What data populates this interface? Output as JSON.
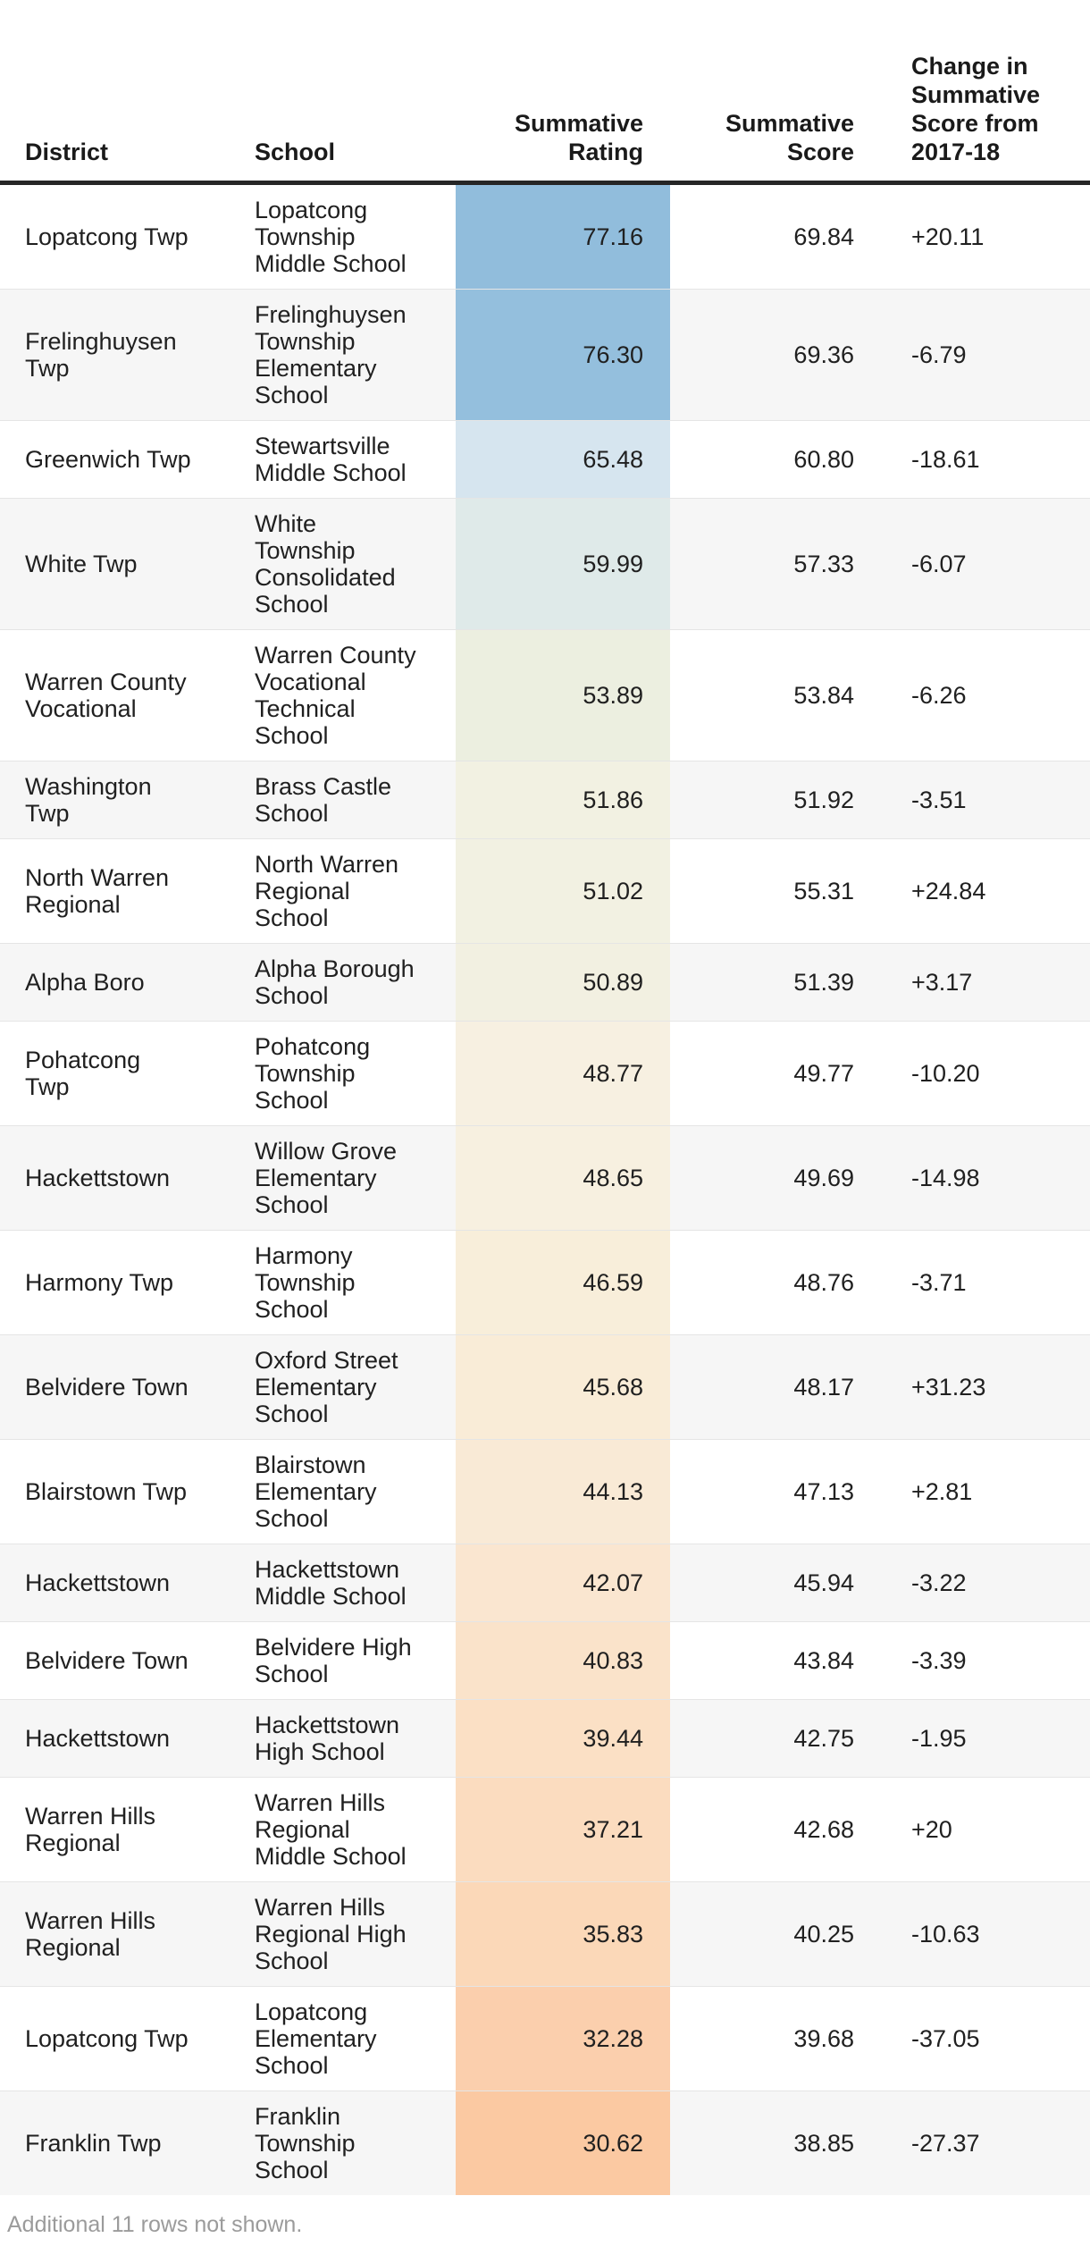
{
  "chart_data": {
    "type": "table",
    "title": "",
    "columns": [
      "District",
      "School",
      "Summative Rating",
      "Summative Score",
      "Change in Summative Score from 2017-18"
    ],
    "header_display": {
      "district": "District",
      "school": "School",
      "rating": "Summative\nRating",
      "score": "Summative\nScore",
      "change": "Change in\nSummative\nScore from\n2017-18"
    },
    "rows": [
      {
        "district": "Lopatcong Twp",
        "school": "Lopatcong\nTownship\nMiddle School",
        "rating": "77.16",
        "score": "69.84",
        "change": "+20.11",
        "rating_color": "#91bddc"
      },
      {
        "district": "Frelinghuysen\nTwp",
        "school": "Frelinghuysen\nTownship\nElementary\nSchool",
        "rating": "76.30",
        "score": "69.36",
        "change": "-6.79",
        "rating_color": "#94bfdd"
      },
      {
        "district": "Greenwich Twp",
        "school": "Stewartsville\nMiddle School",
        "rating": "65.48",
        "score": "60.80",
        "change": "-18.61",
        "rating_color": "#d6e5ef"
      },
      {
        "district": "White Twp",
        "school": "White\nTownship\nConsolidated\nSchool",
        "rating": "59.99",
        "score": "57.33",
        "change": "-6.07",
        "rating_color": "#dfeae9"
      },
      {
        "district": "Warren County\nVocational",
        "school": "Warren County\nVocational\nTechnical\nSchool",
        "rating": "53.89",
        "score": "53.84",
        "change": "-6.26",
        "rating_color": "#ecefe0"
      },
      {
        "district": "Washington\nTwp",
        "school": "Brass Castle\nSchool",
        "rating": "51.86",
        "score": "51.92",
        "change": "-3.51",
        "rating_color": "#f2f1e2"
      },
      {
        "district": "North Warren\nRegional",
        "school": "North Warren\nRegional\nSchool",
        "rating": "51.02",
        "score": "55.31",
        "change": "+24.84",
        "rating_color": "#f2f1e2"
      },
      {
        "district": "Alpha Boro",
        "school": "Alpha Borough\nSchool",
        "rating": "50.89",
        "score": "51.39",
        "change": "+3.17",
        "rating_color": "#f2f0e1"
      },
      {
        "district": "Pohatcong\nTwp",
        "school": "Pohatcong\nTownship\nSchool",
        "rating": "48.77",
        "score": "49.77",
        "change": "-10.20",
        "rating_color": "#f7f0e1"
      },
      {
        "district": "Hackettstown",
        "school": "Willow Grove\nElementary\nSchool",
        "rating": "48.65",
        "score": "49.69",
        "change": "-14.98",
        "rating_color": "#f7f0e0"
      },
      {
        "district": "Harmony Twp",
        "school": "Harmony\nTownship\nSchool",
        "rating": "46.59",
        "score": "48.76",
        "change": "-3.71",
        "rating_color": "#f8eeda"
      },
      {
        "district": "Belvidere Town",
        "school": "Oxford Street\nElementary\nSchool",
        "rating": "45.68",
        "score": "48.17",
        "change": "+31.23",
        "rating_color": "#f9ecd7"
      },
      {
        "district": "Blairstown Twp",
        "school": "Blairstown\nElementary\nSchool",
        "rating": "44.13",
        "score": "47.13",
        "change": "+2.81",
        "rating_color": "#f9ead6"
      },
      {
        "district": "Hackettstown",
        "school": "Hackettstown\nMiddle School",
        "rating": "42.07",
        "score": "45.94",
        "change": "-3.22",
        "rating_color": "#fae6d0"
      },
      {
        "district": "Belvidere Town",
        "school": "Belvidere High\nSchool",
        "rating": "40.83",
        "score": "43.84",
        "change": "-3.39",
        "rating_color": "#fae3ca"
      },
      {
        "district": "Hackettstown",
        "school": "Hackettstown\nHigh School",
        "rating": "39.44",
        "score": "42.75",
        "change": "-1.95",
        "rating_color": "#fbe0c5"
      },
      {
        "district": "Warren Hills\nRegional",
        "school": "Warren Hills\nRegional\nMiddle School",
        "rating": "37.21",
        "score": "42.68",
        "change": "+20",
        "rating_color": "#fbdcbf"
      },
      {
        "district": "Warren Hills\nRegional",
        "school": "Warren Hills\nRegional High\nSchool",
        "rating": "35.83",
        "score": "40.25",
        "change": "-10.63",
        "rating_color": "#fbd8b8"
      },
      {
        "district": "Lopatcong Twp",
        "school": "Lopatcong\nElementary\nSchool",
        "rating": "32.28",
        "score": "39.68",
        "change": "-37.05",
        "rating_color": "#fbcfad"
      },
      {
        "district": "Franklin Twp",
        "school": "Franklin\nTownship\nSchool",
        "rating": "30.62",
        "score": "38.85",
        "change": "-27.37",
        "rating_color": "#fbc9a2"
      }
    ],
    "layout": {
      "zebra_striping": true,
      "rating_column_color_scale": "diverging blue-to-orange, high=blue low=orange"
    }
  },
  "footer": {
    "note": "Additional 11 rows not shown."
  },
  "style": {
    "zebra_color": "#f6f6f6",
    "row_border_color": "#e5e5e5",
    "header_rule_color": "#262626",
    "text_color": "#202020",
    "muted_text_color": "#9b9b9b"
  }
}
